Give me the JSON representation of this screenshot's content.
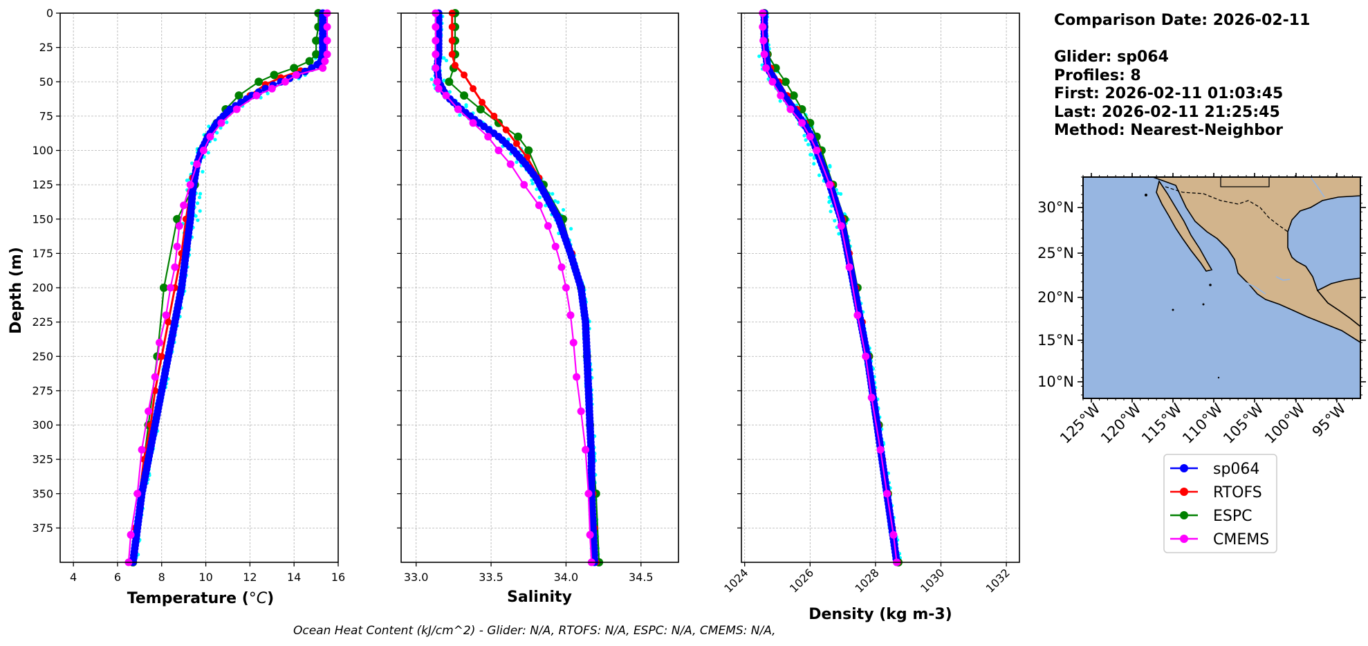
{
  "info": {
    "lines": [
      "Comparison Date: 2026-02-11",
      "",
      "Glider: sp064",
      "Profiles: 8",
      "First: 2026-02-11 01:03:45",
      "Last: 2026-02-11 21:25:45",
      "Method: Nearest-Neighbor"
    ]
  },
  "footer": "Ocean Heat Content (kJ/cm^2) - Glider: N/A,  RTOFS: N/A,  ESPC: N/A,  CMEMS: N/A,",
  "colors": {
    "sp064": "#0000ff",
    "sp064_raw": "#00ffff",
    "RTOFS": "#ff0000",
    "ESPC": "#008000",
    "CMEMS": "#ff00ff",
    "ocean": "#97b6e1",
    "land": "#d2b48c"
  },
  "legend": [
    "sp064",
    "RTOFS",
    "ESPC",
    "CMEMS"
  ],
  "map": {
    "lat_labels": [
      "30°N",
      "25°N",
      "20°N",
      "15°N",
      "10°N"
    ],
    "lon_labels": [
      "125°W",
      "120°W",
      "115°W",
      "110°W",
      "105°W",
      "100°W",
      "95°W"
    ]
  },
  "chart_data": [
    {
      "type": "line",
      "xlabel": "Temperature (°C)",
      "ylabel": "Depth (m)",
      "xlim": [
        3.4,
        16
      ],
      "ylim": [
        400,
        0
      ],
      "xticks": [
        "4",
        "6",
        "8",
        "10",
        "12",
        "14",
        "16"
      ],
      "yticks": [
        "0",
        "25",
        "50",
        "75",
        "100",
        "125",
        "150",
        "175",
        "200",
        "225",
        "250",
        "275",
        "300",
        "325",
        "350",
        "375"
      ],
      "grid": true,
      "series": [
        {
          "name": "sp064",
          "depth": [
            0,
            10,
            20,
            30,
            36,
            40,
            45,
            50,
            55,
            60,
            65,
            70,
            80,
            90,
            100,
            110,
            120,
            130,
            150,
            175,
            200,
            225,
            250,
            275,
            300,
            325,
            350,
            375,
            400
          ],
          "values": [
            15.3,
            15.3,
            15.3,
            15.3,
            15.2,
            14.8,
            14.2,
            13.4,
            12.7,
            12.1,
            11.6,
            11.1,
            10.5,
            10.1,
            9.8,
            9.6,
            9.5,
            9.4,
            9.3,
            9.1,
            8.9,
            8.6,
            8.3,
            8.0,
            7.7,
            7.4,
            7.1,
            6.9,
            6.7
          ]
        },
        {
          "name": "RTOFS",
          "depth": [
            0,
            10,
            20,
            30,
            38,
            42,
            47,
            52,
            60,
            70,
            80,
            90,
            100,
            110,
            120,
            130,
            150,
            175,
            200,
            225,
            250,
            275,
            300,
            325,
            350,
            375,
            400
          ],
          "values": [
            15.3,
            15.3,
            15.3,
            15.3,
            15.1,
            14.3,
            13.4,
            12.7,
            12.0,
            11.2,
            10.6,
            10.1,
            9.8,
            9.6,
            9.4,
            9.3,
            9.1,
            8.9,
            8.6,
            8.3,
            8.0,
            7.7,
            7.5,
            7.2,
            7.0,
            6.8,
            6.6
          ]
        },
        {
          "name": "ESPC",
          "depth": [
            0,
            10,
            20,
            30,
            35,
            40,
            45,
            50,
            60,
            70,
            80,
            90,
            100,
            125,
            150,
            200,
            250,
            300,
            350,
            400
          ],
          "values": [
            15.1,
            15.1,
            15.0,
            15.0,
            14.7,
            14.0,
            13.1,
            12.4,
            11.5,
            10.9,
            10.5,
            10.1,
            9.8,
            9.5,
            8.7,
            8.1,
            7.8,
            7.4,
            7.0,
            6.7
          ]
        },
        {
          "name": "CMEMS",
          "depth": [
            0,
            10,
            20,
            30,
            35,
            40,
            45,
            50,
            55,
            60,
            70,
            80,
            90,
            100,
            110,
            125,
            140,
            155,
            170,
            185,
            200,
            220,
            240,
            265,
            290,
            318,
            350,
            380,
            400
          ],
          "values": [
            15.5,
            15.5,
            15.5,
            15.5,
            15.4,
            15.3,
            14.1,
            13.6,
            13.0,
            12.3,
            11.4,
            10.7,
            10.2,
            9.9,
            9.6,
            9.3,
            9.0,
            8.8,
            8.7,
            8.6,
            8.4,
            8.2,
            7.9,
            7.7,
            7.4,
            7.1,
            6.9,
            6.6,
            6.5
          ]
        }
      ]
    },
    {
      "type": "line",
      "xlabel": "Salinity",
      "ylabel": "",
      "xlim": [
        32.9,
        34.75
      ],
      "ylim": [
        400,
        0
      ],
      "xticks": [
        "33.0",
        "33.5",
        "34.0",
        "34.5"
      ],
      "grid": true,
      "series": [
        {
          "name": "sp064",
          "depth": [
            0,
            10,
            20,
            30,
            40,
            50,
            60,
            70,
            80,
            90,
            100,
            110,
            120,
            130,
            140,
            150,
            175,
            200,
            225,
            250,
            275,
            300,
            325,
            350,
            375,
            400
          ],
          "values": [
            33.15,
            33.15,
            33.15,
            33.15,
            33.14,
            33.15,
            33.2,
            33.3,
            33.42,
            33.55,
            33.65,
            33.73,
            33.8,
            33.85,
            33.9,
            33.95,
            34.03,
            34.1,
            34.13,
            34.14,
            34.15,
            34.16,
            34.17,
            34.17,
            34.18,
            34.19
          ]
        },
        {
          "name": "RTOFS",
          "depth": [
            0,
            10,
            20,
            30,
            38,
            45,
            55,
            65,
            75,
            85,
            95,
            105,
            120,
            135,
            150,
            175,
            200,
            225,
            250,
            275,
            300,
            325,
            350,
            375,
            400
          ],
          "values": [
            33.24,
            33.24,
            33.24,
            33.24,
            33.26,
            33.32,
            33.38,
            33.44,
            33.52,
            33.6,
            33.67,
            33.74,
            33.82,
            33.88,
            33.95,
            34.04,
            34.1,
            34.13,
            34.14,
            34.15,
            34.16,
            34.17,
            34.18,
            34.19,
            34.2
          ]
        },
        {
          "name": "ESPC",
          "depth": [
            0,
            10,
            20,
            30,
            40,
            50,
            60,
            70,
            80,
            90,
            100,
            125,
            150,
            200,
            250,
            300,
            350,
            400
          ],
          "values": [
            33.26,
            33.26,
            33.26,
            33.26,
            33.25,
            33.22,
            33.32,
            33.43,
            33.55,
            33.68,
            33.75,
            33.85,
            33.98,
            34.1,
            34.14,
            34.16,
            34.2,
            34.22
          ]
        },
        {
          "name": "CMEMS",
          "depth": [
            0,
            10,
            20,
            30,
            40,
            50,
            55,
            60,
            70,
            80,
            90,
            100,
            110,
            125,
            140,
            155,
            170,
            185,
            200,
            220,
            240,
            265,
            290,
            318,
            350,
            380,
            400
          ],
          "values": [
            33.13,
            33.13,
            33.13,
            33.13,
            33.13,
            33.14,
            33.15,
            33.2,
            33.28,
            33.38,
            33.48,
            33.55,
            33.63,
            33.72,
            33.82,
            33.88,
            33.93,
            33.97,
            34.0,
            34.03,
            34.05,
            34.07,
            34.1,
            34.13,
            34.15,
            34.16,
            34.17
          ]
        }
      ]
    },
    {
      "type": "line",
      "xlabel": "Density (kg m-3)",
      "ylabel": "",
      "xlim": [
        1023.9,
        1032.4
      ],
      "ylim": [
        400,
        0
      ],
      "xticks": [
        "1024",
        "1026",
        "1028",
        "1030",
        "1032"
      ],
      "grid": true,
      "series": [
        {
          "name": "sp064",
          "depth": [
            0,
            10,
            20,
            30,
            40,
            50,
            60,
            70,
            80,
            90,
            100,
            125,
            150,
            175,
            200,
            225,
            250,
            275,
            300,
            325,
            350,
            375,
            400
          ],
          "values": [
            1024.6,
            1024.6,
            1024.6,
            1024.65,
            1024.7,
            1024.95,
            1025.2,
            1025.5,
            1025.8,
            1026.05,
            1026.2,
            1026.6,
            1026.95,
            1027.15,
            1027.35,
            1027.55,
            1027.75,
            1027.9,
            1028.05,
            1028.2,
            1028.35,
            1028.5,
            1028.65
          ]
        },
        {
          "name": "RTOFS",
          "depth": [
            0,
            10,
            20,
            30,
            40,
            50,
            60,
            70,
            80,
            90,
            100,
            125,
            150,
            175,
            200,
            225,
            250,
            275,
            300,
            325,
            350,
            375,
            400
          ],
          "values": [
            1024.6,
            1024.6,
            1024.62,
            1024.68,
            1024.8,
            1025.05,
            1025.3,
            1025.6,
            1025.85,
            1026.05,
            1026.25,
            1026.65,
            1027.0,
            1027.2,
            1027.4,
            1027.6,
            1027.78,
            1027.92,
            1028.08,
            1028.22,
            1028.38,
            1028.52,
            1028.68
          ]
        },
        {
          "name": "ESPC",
          "depth": [
            0,
            10,
            20,
            30,
            40,
            50,
            60,
            70,
            80,
            90,
            100,
            125,
            150,
            200,
            250,
            300,
            350,
            400
          ],
          "values": [
            1024.6,
            1024.6,
            1024.62,
            1024.7,
            1024.95,
            1025.25,
            1025.5,
            1025.75,
            1026.0,
            1026.2,
            1026.35,
            1026.7,
            1027.05,
            1027.45,
            1027.8,
            1028.1,
            1028.38,
            1028.7
          ]
        },
        {
          "name": "CMEMS",
          "depth": [
            0,
            10,
            20,
            30,
            40,
            50,
            60,
            70,
            80,
            90,
            100,
            125,
            155,
            185,
            220,
            250,
            280,
            318,
            350,
            380,
            400
          ],
          "values": [
            1024.55,
            1024.55,
            1024.57,
            1024.6,
            1024.65,
            1024.85,
            1025.1,
            1025.4,
            1025.75,
            1026.0,
            1026.2,
            1026.6,
            1026.95,
            1027.2,
            1027.45,
            1027.7,
            1027.88,
            1028.15,
            1028.35,
            1028.55,
            1028.65
          ]
        }
      ]
    }
  ]
}
